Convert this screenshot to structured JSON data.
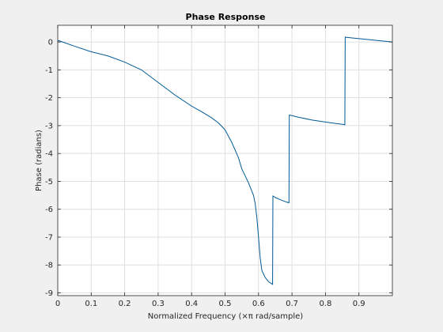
{
  "chart_data": {
    "type": "line",
    "title": "Phase Response",
    "xlabel": "Normalized Frequency (×π rad/sample)",
    "ylabel": "Phase (radians)",
    "xlim": [
      0,
      1
    ],
    "ylim": [
      -9.1,
      0.6
    ],
    "grid": true,
    "xticks": [
      0,
      0.1,
      0.2,
      0.3,
      0.4,
      0.5,
      0.6,
      0.7,
      0.8,
      0.9
    ],
    "xtick_labels": [
      "0",
      "0.1",
      "0.2",
      "0.3",
      "0.4",
      "0.5",
      "0.6",
      "0.7",
      "0.8",
      "0.9"
    ],
    "yticks": [
      0,
      -1,
      -2,
      -3,
      -4,
      -5,
      -6,
      -7,
      -8,
      -9
    ],
    "ytick_labels": [
      "0",
      "-1",
      "-2",
      "-3",
      "-4",
      "-5",
      "-6",
      "-7",
      "-8",
      "-9"
    ],
    "line_color": "#005a96",
    "series": [
      {
        "x": [
          0,
          0.003,
          0.05,
          0.1,
          0.15,
          0.2,
          0.25,
          0.3,
          0.35,
          0.4,
          0.43,
          0.46,
          0.48,
          0.5,
          0.52,
          0.54,
          0.55,
          0.57,
          0.585,
          0.59,
          0.595,
          0.6,
          0.605,
          0.61,
          0.62,
          0.63,
          0.64,
          0.642,
          0.643,
          0.65,
          0.67,
          0.683,
          0.691,
          0.692,
          0.72,
          0.76,
          0.8,
          0.83,
          0.855,
          0.858,
          0.859,
          0.86,
          0.9,
          0.95,
          1.0
        ],
        "y": [
          0,
          0.05,
          -0.15,
          -0.35,
          -0.5,
          -0.72,
          -1.0,
          -1.45,
          -1.9,
          -2.3,
          -2.5,
          -2.72,
          -2.9,
          -3.15,
          -3.6,
          -4.15,
          -4.55,
          -5.05,
          -5.5,
          -5.8,
          -6.3,
          -7.0,
          -7.75,
          -8.2,
          -8.45,
          -8.6,
          -8.68,
          -8.7,
          -5.52,
          -5.58,
          -5.68,
          -5.74,
          -5.77,
          -2.62,
          -2.7,
          -2.8,
          -2.87,
          -2.92,
          -2.96,
          -2.97,
          0.18,
          0.17,
          0.12,
          0.06,
          0.0
        ]
      }
    ]
  }
}
